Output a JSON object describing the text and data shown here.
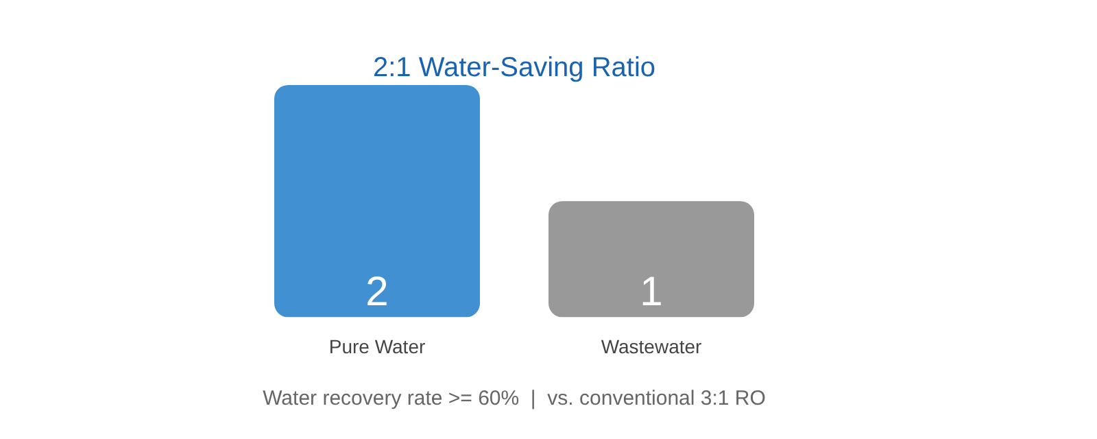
{
  "chart_data": {
    "type": "bar",
    "title": "2:1 Water-Saving Ratio",
    "categories": [
      "Pure Water",
      "Wastewater"
    ],
    "values": [
      2,
      1
    ],
    "colors": [
      "#4191d2",
      "#999999"
    ],
    "data_labels": true,
    "grid": false,
    "legend": false,
    "annotations": [
      "Water recovery rate >= 60%  |  vs. conventional 3:1 RO"
    ]
  }
}
